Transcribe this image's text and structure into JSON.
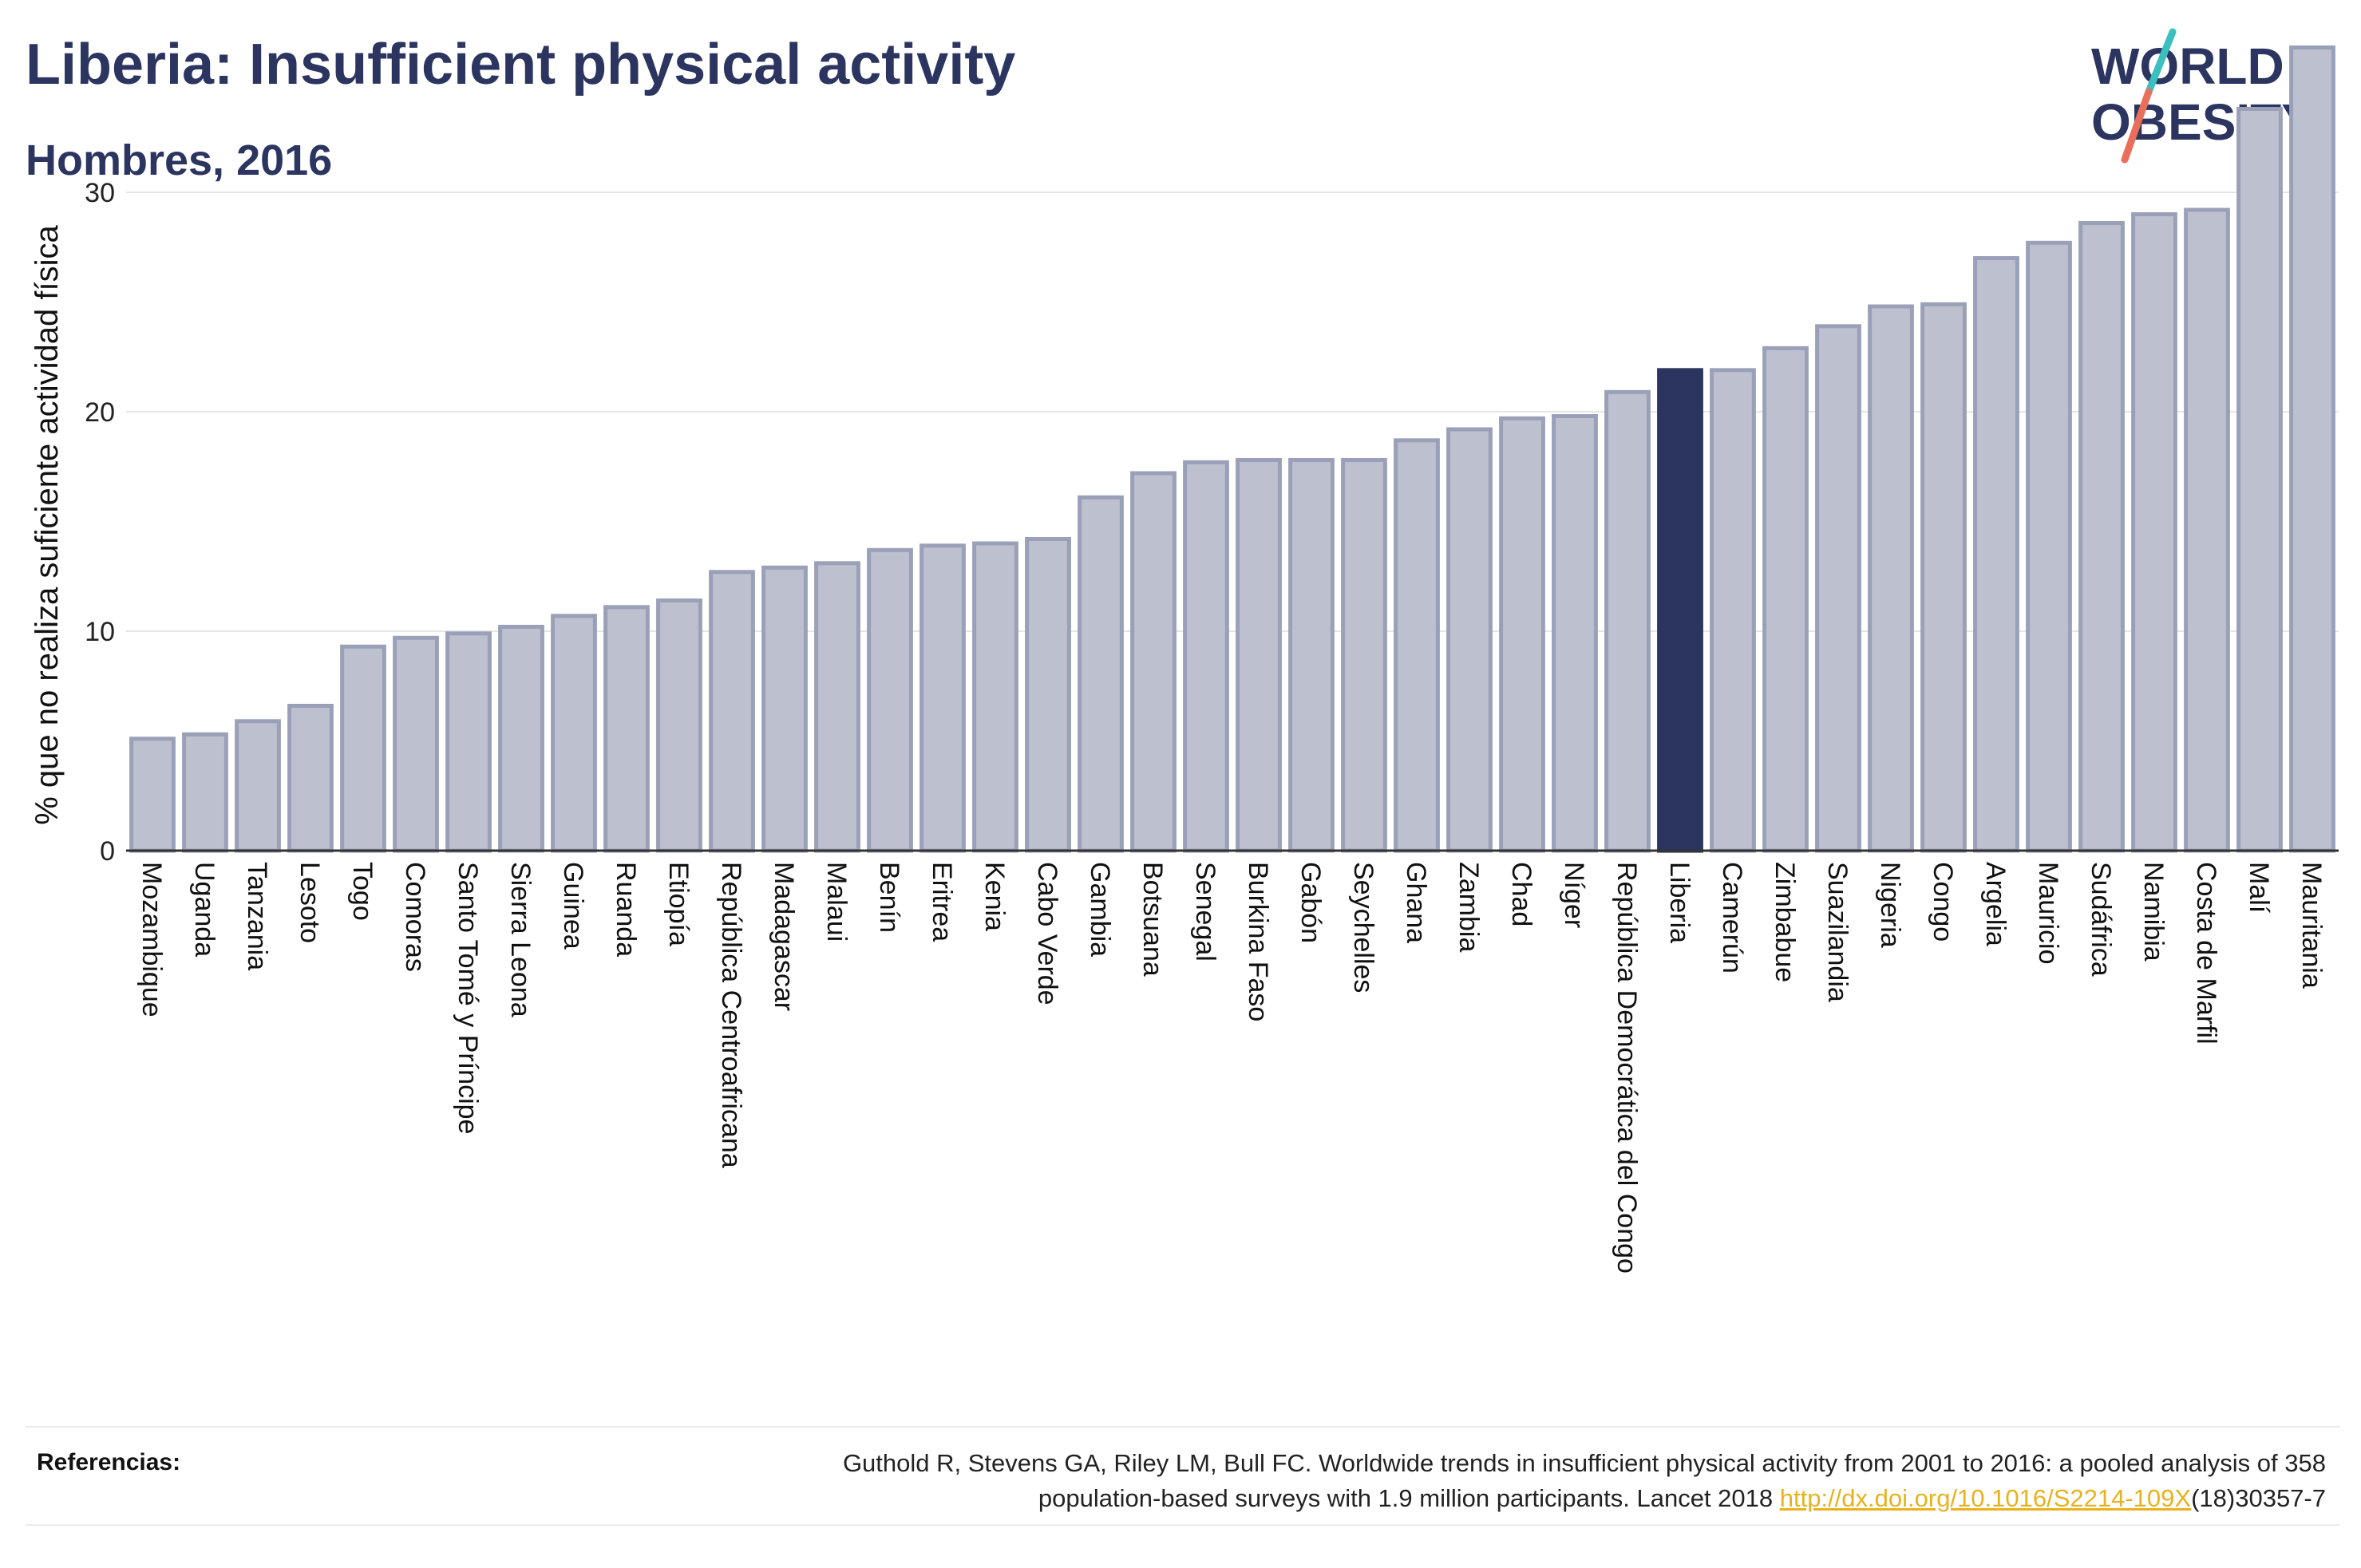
{
  "title": "Liberia: Insufficient physical activity",
  "subtitle": "Hombres, 2016",
  "logo": {
    "line1": "WORLD",
    "line2": "OBESITY"
  },
  "colors": {
    "bar": "#bcc0cf",
    "bar_edge": "#9aa0b8",
    "highlight": "#2b3560",
    "grid": "#e6e6e6",
    "title": "#2b3560",
    "link": "#e8b21e"
  },
  "chart_data": {
    "type": "bar",
    "title": "Liberia: Insufficient physical activity",
    "subtitle": "Hombres, 2016",
    "xlabel": "",
    "ylabel": "% que no realiza suficiente actividad física",
    "ylim": [
      0,
      37
    ],
    "yticks": [
      0,
      10,
      20,
      30
    ],
    "highlight": "Liberia",
    "grid": true,
    "categories": [
      "Mozambique",
      "Uganda",
      "Tanzania",
      "Lesoto",
      "Togo",
      "Comoras",
      "Santo Tomé y Príncipe",
      "Sierra Leona",
      "Guinea",
      "Ruanda",
      "Etiopía",
      "República Centroafricana",
      "Madagascar",
      "Malaui",
      "Benín",
      "Eritrea",
      "Kenia",
      "Cabo Verde",
      "Gambia",
      "Botsuana",
      "Senegal",
      "Burkina Faso",
      "Gabón",
      "Seychelles",
      "Ghana",
      "Zambia",
      "Chad",
      "Níger",
      "República Democrática del Congo",
      "Liberia",
      "Camerún",
      "Zimbabue",
      "Suazilandia",
      "Nigeria",
      "Congo",
      "Argelia",
      "Mauricio",
      "Sudáfrica",
      "Namibia",
      "Costa de Marfil",
      "Malí",
      "Mauritania"
    ],
    "values": [
      5.1,
      5.3,
      5.9,
      6.6,
      9.3,
      9.7,
      9.9,
      10.2,
      10.7,
      11.1,
      11.4,
      12.7,
      12.9,
      13.1,
      13.7,
      13.9,
      14.0,
      14.2,
      16.1,
      17.2,
      17.7,
      17.8,
      17.8,
      17.8,
      18.7,
      19.2,
      19.7,
      19.8,
      20.9,
      21.9,
      21.9,
      22.9,
      23.9,
      24.8,
      24.9,
      27.0,
      27.7,
      28.6,
      29.0,
      29.2,
      33.8,
      36.6
    ]
  },
  "references": {
    "label": "Referencias:",
    "line1": "Guthold R, Stevens GA, Riley LM, Bull FC. Worldwide trends in insufficient physical activity from 2001 to 2016: a pooled analysis of 358",
    "line2_pre": "population-based surveys with 1.9 million participants. Lancet 2018 ",
    "link": "http://dx.doi.org/10.1016/S2214-109X",
    "line2_post": "(18)30357-7"
  }
}
